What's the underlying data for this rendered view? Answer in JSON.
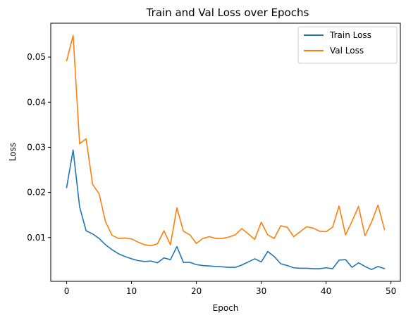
{
  "chart_data": {
    "type": "line",
    "title": "Train and Val Loss over Epochs",
    "xlabel": "Epoch",
    "ylabel": "Loss",
    "xlim": [
      -2.45,
      51.45
    ],
    "ylim": [
      0.0003,
      0.0575
    ],
    "xticks": [
      0,
      10,
      20,
      30,
      40,
      50
    ],
    "yticks": [
      0.01,
      0.02,
      0.03,
      0.04,
      0.05
    ],
    "ytick_labels": [
      "0.01",
      "0.02",
      "0.03",
      "0.04",
      "0.05"
    ],
    "grid": false,
    "legend_position": "top-right",
    "x": [
      0,
      1,
      2,
      3,
      4,
      5,
      6,
      7,
      8,
      9,
      10,
      11,
      12,
      13,
      14,
      15,
      16,
      17,
      18,
      19,
      20,
      21,
      22,
      23,
      24,
      25,
      26,
      27,
      28,
      29,
      30,
      31,
      32,
      33,
      34,
      35,
      36,
      37,
      38,
      39,
      40,
      41,
      42,
      43,
      44,
      45,
      46,
      47,
      48,
      49
    ],
    "series": [
      {
        "name": "Train Loss",
        "color": "#1f77b4",
        "values": [
          0.0211,
          0.0294,
          0.0168,
          0.0115,
          0.0108,
          0.0098,
          0.0084,
          0.0073,
          0.0064,
          0.0058,
          0.0053,
          0.0049,
          0.0047,
          0.0048,
          0.0044,
          0.0055,
          0.0051,
          0.008,
          0.0045,
          0.0045,
          0.004,
          0.0038,
          0.0037,
          0.0036,
          0.0035,
          0.0034,
          0.0034,
          0.0039,
          0.0046,
          0.0053,
          0.0046,
          0.0069,
          0.0058,
          0.0042,
          0.0038,
          0.0033,
          0.0032,
          0.0032,
          0.0031,
          0.0031,
          0.0033,
          0.0031,
          0.005,
          0.0051,
          0.0034,
          0.0044,
          0.0036,
          0.0029,
          0.0036,
          0.0031
        ]
      },
      {
        "name": "Val Loss",
        "color": "#ff7f0e",
        "values": [
          0.0492,
          0.0548,
          0.0308,
          0.0319,
          0.0218,
          0.0197,
          0.0135,
          0.0105,
          0.0098,
          0.0099,
          0.0097,
          0.009,
          0.0084,
          0.0082,
          0.0086,
          0.0115,
          0.0084,
          0.0166,
          0.0114,
          0.0106,
          0.0087,
          0.0098,
          0.0102,
          0.0098,
          0.0098,
          0.0101,
          0.0106,
          0.012,
          0.0108,
          0.0096,
          0.0134,
          0.0106,
          0.0098,
          0.0126,
          0.0123,
          0.0102,
          0.0113,
          0.0124,
          0.0121,
          0.0114,
          0.0113,
          0.0123,
          0.017,
          0.0106,
          0.0136,
          0.0169,
          0.0104,
          0.0134,
          0.0172,
          0.0118
        ]
      }
    ]
  }
}
